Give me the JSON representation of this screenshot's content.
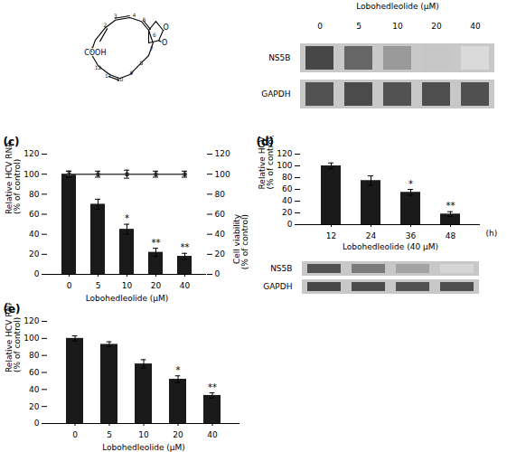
{
  "chart_data": [
    {
      "type": "structure",
      "annotations": [
        "2",
        "3",
        "4",
        "5",
        "6",
        "7",
        "8",
        "9",
        "10",
        "11",
        "12",
        "1",
        "O",
        "O",
        "COOH"
      ]
    },
    {
      "type": "blot",
      "title": "Lobohedleolide (μM)",
      "categories": [
        "0",
        "5",
        "10",
        "20",
        "40"
      ],
      "series": [
        {
          "name": "NS5B",
          "values": [
            0.9,
            0.75,
            0.5,
            0.28,
            0.18
          ]
        },
        {
          "name": "GAPDH",
          "values": [
            0.85,
            0.88,
            0.85,
            0.87,
            0.86
          ]
        }
      ]
    },
    {
      "type": "bar",
      "title": "(c)",
      "x_label": "Lobohedleolide (μM)",
      "y_label": "Relative HCV RNA\n(% of control)",
      "y2_label": "Cell viability\n(% of control)",
      "categories": [
        "0",
        "5",
        "10",
        "20",
        "40"
      ],
      "series": [
        {
          "type": "bar",
          "color": "#1a1a1a",
          "values": [
            100,
            70,
            45,
            22,
            18
          ],
          "errors": [
            3,
            5,
            5,
            4,
            3
          ],
          "annotations": [
            null,
            null,
            "*",
            "**",
            "**"
          ]
        },
        {
          "type": "line",
          "axis": "y2",
          "color": "#444444",
          "marker": "circle",
          "values": [
            100,
            100,
            100,
            100,
            100
          ],
          "errors": [
            3,
            3,
            4,
            3,
            3
          ]
        }
      ],
      "ylim": [
        0,
        120
      ],
      "yticks": [
        0,
        20,
        40,
        60,
        80,
        100,
        120
      ],
      "y2lim": [
        0,
        120
      ],
      "y2ticks": [
        0,
        20,
        40,
        60,
        80,
        100,
        120
      ]
    },
    {
      "type": "bar",
      "title": "(d)",
      "x_label": "Lobohedleolide (40 μM)",
      "x_unit": "(h)",
      "y_label": "Relative HCV RNA\n(% of control)",
      "categories": [
        "12",
        "24",
        "36",
        "48"
      ],
      "color": "#1a1a1a",
      "values": [
        100,
        75,
        55,
        18
      ],
      "errors": [
        5,
        8,
        5,
        4
      ],
      "annotations": [
        null,
        null,
        "*",
        "**"
      ],
      "ylim": [
        0,
        120
      ],
      "yticks": [
        0,
        20,
        40,
        60,
        80,
        100,
        120
      ],
      "blot": {
        "series": [
          {
            "name": "NS5B",
            "values": [
              0.85,
              0.65,
              0.45,
              0.2
            ]
          },
          {
            "name": "GAPDH",
            "values": [
              0.9,
              0.88,
              0.85,
              0.87
            ]
          }
        ]
      }
    },
    {
      "type": "bar",
      "title": "(e)",
      "x_label": "Lobohedleolide (μM)",
      "y_label": "Relative HCV RNA\n(% of control)",
      "categories": [
        "0",
        "5",
        "10",
        "20",
        "40"
      ],
      "color": "#1a1a1a",
      "values": [
        100,
        93,
        70,
        52,
        33
      ],
      "errors": [
        3,
        3,
        5,
        4,
        3
      ],
      "annotations": [
        null,
        null,
        null,
        "*",
        "**"
      ],
      "ylim": [
        0,
        120
      ],
      "yticks": [
        0,
        20,
        40,
        60,
        80,
        100,
        120
      ]
    }
  ]
}
